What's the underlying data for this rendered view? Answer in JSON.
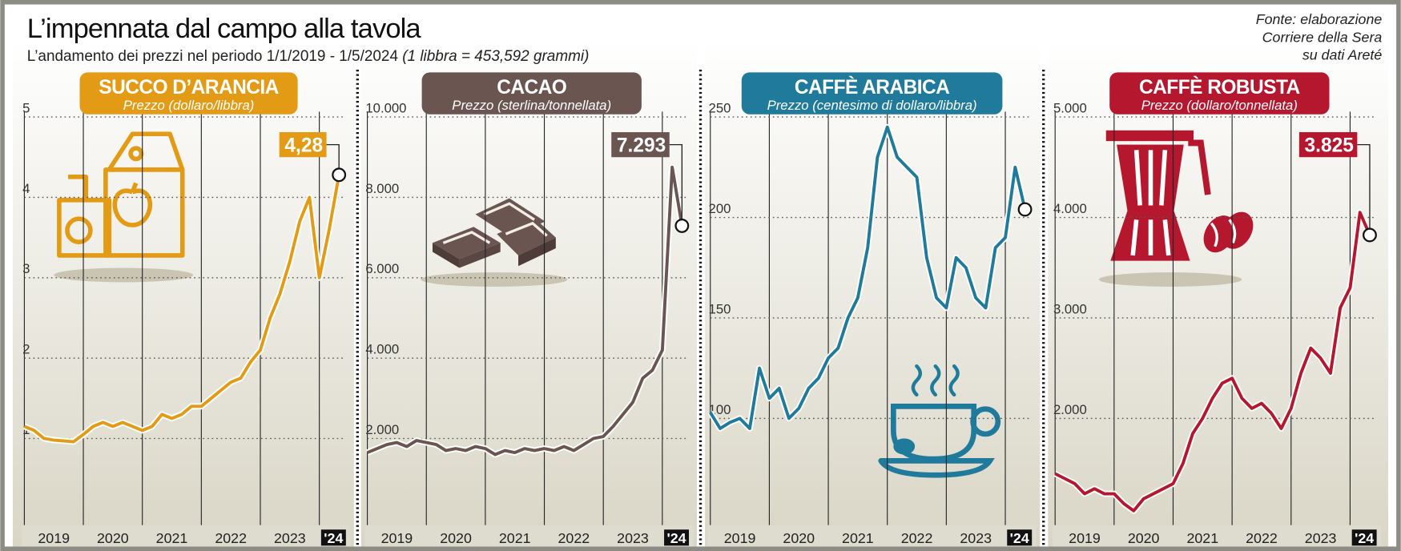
{
  "title": "L’impennata dal campo alla tavola",
  "subtitle": "L’andamento dei prezzi nel periodo 1/1/2019 - 1/5/2024",
  "subtitle_note": "(1 libbra = 453,592 grammi)",
  "source": [
    "Fonte: elaborazione",
    "Corriere della Sera",
    "su dati Areté"
  ],
  "chart_data": [
    {
      "type": "line",
      "title": "SUCCO D’ARANCIA",
      "subtitle": "Prezzo (dollaro/libbra)",
      "color": "#e39b16",
      "grid": true,
      "x": [
        2019,
        2019.167,
        2019.333,
        2019.5,
        2019.667,
        2019.833,
        2020,
        2020.167,
        2020.333,
        2020.5,
        2020.667,
        2020.833,
        2021,
        2021.167,
        2021.333,
        2021.5,
        2021.667,
        2021.833,
        2022,
        2022.167,
        2022.333,
        2022.5,
        2022.667,
        2022.833,
        2023,
        2023.167,
        2023.333,
        2023.5,
        2023.667,
        2023.833,
        2024,
        2024.167,
        2024.333
      ],
      "values": [
        1.15,
        1.1,
        1.0,
        0.98,
        0.97,
        0.96,
        1.05,
        1.15,
        1.2,
        1.15,
        1.2,
        1.15,
        1.1,
        1.15,
        1.3,
        1.25,
        1.3,
        1.4,
        1.4,
        1.5,
        1.6,
        1.7,
        1.75,
        1.95,
        2.1,
        2.5,
        2.8,
        3.2,
        3.7,
        4.0,
        3.0,
        3.6,
        4.28
      ],
      "value_labels": [
        null,
        null,
        null,
        null,
        null,
        null,
        null,
        null,
        null,
        null,
        null,
        null,
        null,
        null,
        null,
        null,
        null,
        null,
        null,
        null,
        null,
        null,
        null,
        null,
        null,
        null,
        null,
        null,
        null,
        null,
        null,
        null,
        "4,28"
      ],
      "xlim": [
        2019,
        2024.42
      ],
      "xticks": [
        2019,
        2020,
        2021,
        2022,
        2023,
        {
          "value": 2024,
          "label": "'24"
        }
      ],
      "ylim": [
        0,
        5.5
      ],
      "yticks": [
        1,
        2,
        3,
        4,
        5
      ]
    },
    {
      "type": "line",
      "title": "CACAO",
      "subtitle": "Prezzo (sterlina/tonnellata)",
      "color": "#6b5550",
      "grid": true,
      "x": [
        2019,
        2019.167,
        2019.333,
        2019.5,
        2019.667,
        2019.833,
        2020,
        2020.167,
        2020.333,
        2020.5,
        2020.667,
        2020.833,
        2021,
        2021.167,
        2021.333,
        2021.5,
        2021.667,
        2021.833,
        2022,
        2022.167,
        2022.333,
        2022.5,
        2022.667,
        2022.833,
        2023,
        2023.167,
        2023.333,
        2023.5,
        2023.667,
        2023.833,
        2024,
        2024.167,
        2024.333
      ],
      "values": [
        1650,
        1750,
        1850,
        1900,
        1800,
        1950,
        1900,
        1850,
        1700,
        1750,
        1700,
        1800,
        1750,
        1600,
        1700,
        1650,
        1750,
        1700,
        1750,
        1700,
        1800,
        1700,
        1850,
        2000,
        2050,
        2300,
        2600,
        2900,
        3500,
        3700,
        4200,
        8750,
        7293
      ],
      "value_labels": [
        null,
        null,
        null,
        null,
        null,
        null,
        null,
        null,
        null,
        null,
        null,
        null,
        null,
        null,
        null,
        null,
        null,
        null,
        null,
        null,
        null,
        null,
        null,
        null,
        null,
        null,
        null,
        null,
        null,
        null,
        null,
        null,
        "7.293"
      ],
      "xlim": [
        2019,
        2024.42
      ],
      "xticks": [
        2019,
        2020,
        2021,
        2022,
        2023,
        {
          "value": 2024,
          "label": "'24"
        }
      ],
      "ylim": [
        0,
        11000
      ],
      "yticks": [
        {
          "value": 2000,
          "label": "2.000"
        },
        {
          "value": 4000,
          "label": "4.000"
        },
        {
          "value": 6000,
          "label": "6.000"
        },
        {
          "value": 8000,
          "label": "8.000"
        },
        {
          "value": 10000,
          "label": "10.000"
        }
      ]
    },
    {
      "type": "line",
      "title": "CAFFÈ ARABICA",
      "subtitle": "Prezzo (centesimo di dollaro/libbra)",
      "color": "#1f7a9b",
      "grid": true,
      "x": [
        2019,
        2019.167,
        2019.333,
        2019.5,
        2019.667,
        2019.833,
        2020,
        2020.167,
        2020.333,
        2020.5,
        2020.667,
        2020.833,
        2021,
        2021.167,
        2021.333,
        2021.5,
        2021.667,
        2021.833,
        2022,
        2022.167,
        2022.333,
        2022.5,
        2022.667,
        2022.833,
        2023,
        2023.167,
        2023.333,
        2023.5,
        2023.667,
        2023.833,
        2024,
        2024.167,
        2024.333
      ],
      "values": [
        103,
        95,
        98,
        100,
        95,
        125,
        110,
        115,
        100,
        105,
        115,
        120,
        130,
        135,
        150,
        160,
        185,
        230,
        245,
        230,
        225,
        220,
        180,
        160,
        155,
        180,
        175,
        160,
        155,
        185,
        190,
        225,
        204
      ],
      "value_labels": [
        null,
        null,
        null,
        null,
        null,
        null,
        null,
        null,
        null,
        null,
        null,
        null,
        null,
        null,
        null,
        null,
        null,
        null,
        null,
        null,
        null,
        null,
        null,
        null,
        null,
        null,
        null,
        null,
        null,
        null,
        null,
        null,
        null
      ],
      "xlim": [
        2019,
        2024.42
      ],
      "xticks": [
        2019,
        2020,
        2021,
        2022,
        2023,
        {
          "value": 2024,
          "label": "'24"
        }
      ],
      "ylim": [
        50,
        270
      ],
      "yticks": [
        100,
        150,
        200,
        250
      ]
    },
    {
      "type": "line",
      "title": "CAFFÈ ROBUSTA",
      "subtitle": "Prezzo (dollaro/tonnellata)",
      "color": "#b5172f",
      "grid": true,
      "x": [
        2019,
        2019.167,
        2019.333,
        2019.5,
        2019.667,
        2019.833,
        2020,
        2020.167,
        2020.333,
        2020.5,
        2020.667,
        2020.833,
        2021,
        2021.167,
        2021.333,
        2021.5,
        2021.667,
        2021.833,
        2022,
        2022.167,
        2022.333,
        2022.5,
        2022.667,
        2022.833,
        2023,
        2023.167,
        2023.333,
        2023.5,
        2023.667,
        2023.833,
        2024,
        2024.167,
        2024.333
      ],
      "values": [
        1450,
        1400,
        1350,
        1250,
        1300,
        1250,
        1250,
        1150,
        1080,
        1200,
        1250,
        1300,
        1350,
        1550,
        1850,
        2000,
        2200,
        2350,
        2400,
        2200,
        2100,
        2150,
        2050,
        1900,
        2100,
        2450,
        2700,
        2600,
        2450,
        3100,
        3300,
        4050,
        3825
      ],
      "value_labels": [
        null,
        null,
        null,
        null,
        null,
        null,
        null,
        null,
        null,
        null,
        null,
        null,
        null,
        null,
        null,
        null,
        null,
        null,
        null,
        null,
        null,
        null,
        null,
        null,
        null,
        null,
        null,
        null,
        null,
        null,
        null,
        null,
        "3.825"
      ],
      "xlim": [
        2019,
        2024.42
      ],
      "xticks": [
        2019,
        2020,
        2021,
        2022,
        2023,
        {
          "value": 2024,
          "label": "'24"
        }
      ],
      "ylim": [
        1000,
        5400
      ],
      "yticks": [
        {
          "value": 2000,
          "label": "2.000"
        },
        {
          "value": 3000,
          "label": "3.000"
        },
        {
          "value": 4000,
          "label": "4.000"
        },
        {
          "value": 5000,
          "label": "5.000"
        }
      ]
    }
  ]
}
